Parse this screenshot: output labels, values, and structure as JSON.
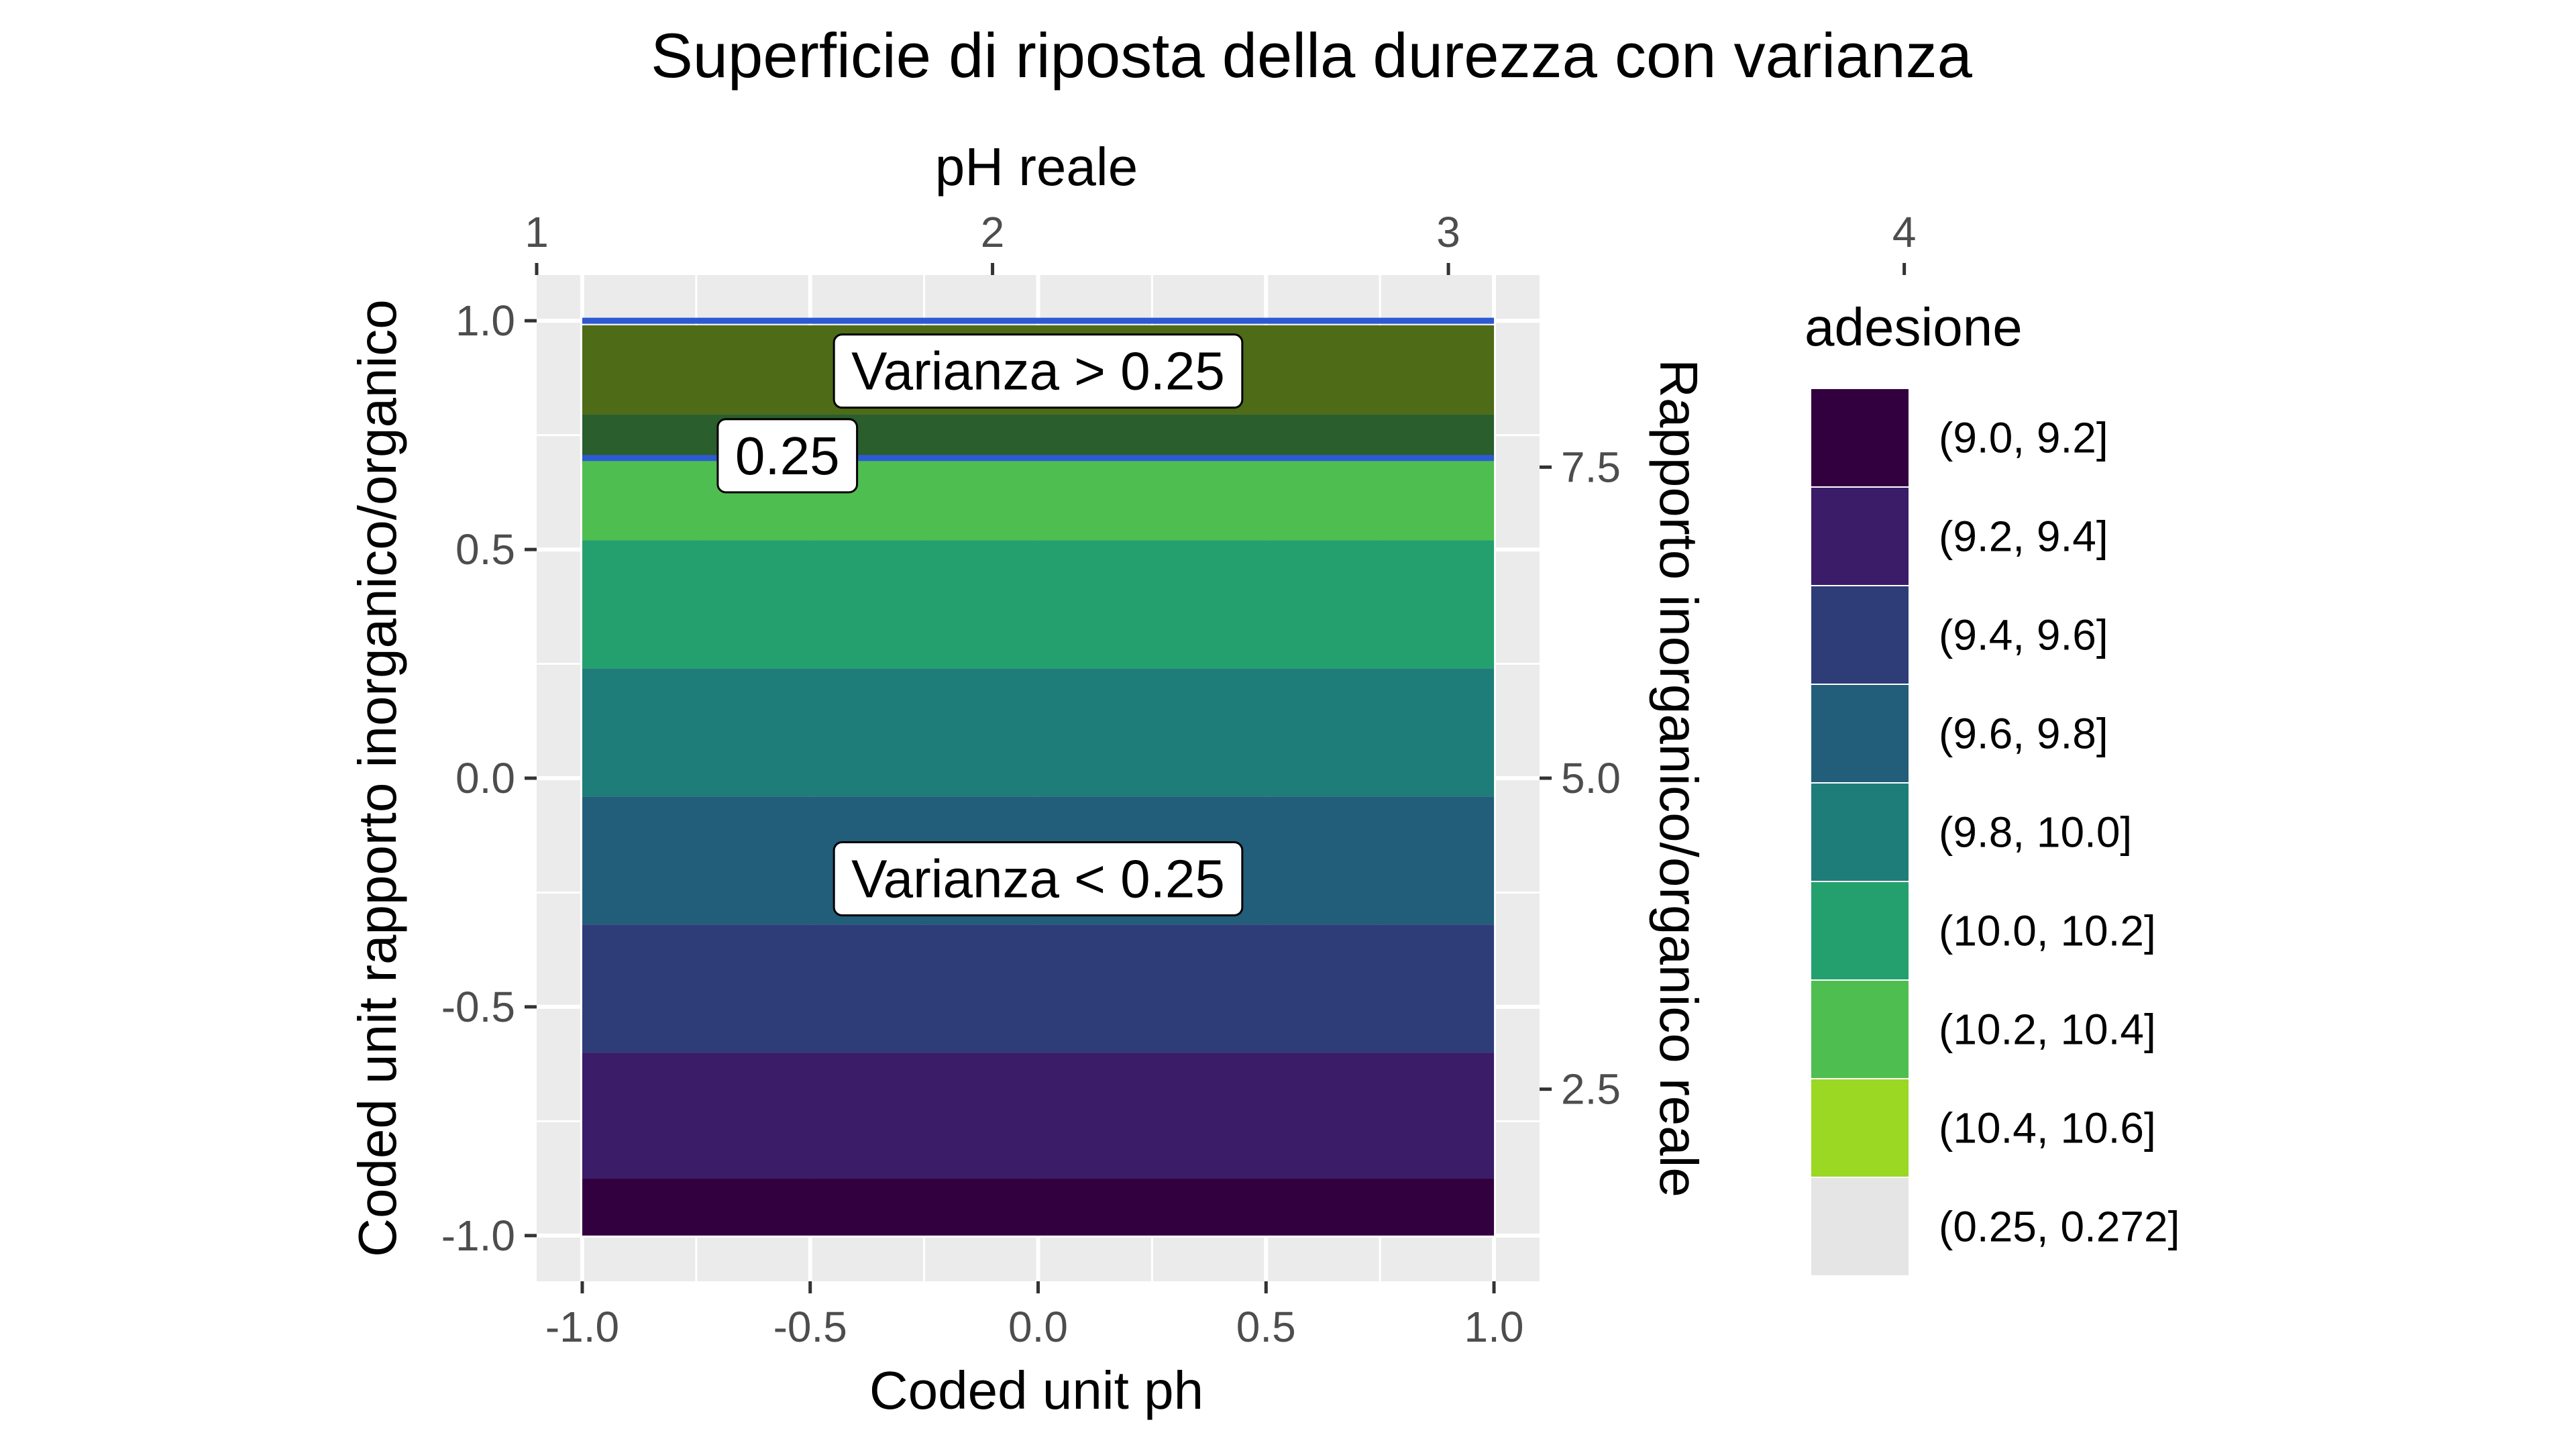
{
  "chart_data": {
    "type": "contour",
    "title": "Superficie di riposta della durezza con varianza",
    "xlabel": "Coded unit ph",
    "ylabel": "Coded unit rapporto inorganico/organico",
    "x2label": "pH reale",
    "y2label": "Rapporto inorganico/organico reale",
    "xlim": [
      -1.1,
      1.1
    ],
    "ylim": [
      -1.1,
      1.1
    ],
    "x_ticks": [
      -1.0,
      -0.5,
      0.0,
      0.5,
      1.0
    ],
    "x_tick_labels": [
      "-1.0",
      "-0.5",
      "0.0",
      "0.5",
      "1.0"
    ],
    "y_ticks": [
      -1.0,
      -0.5,
      0.0,
      0.5,
      1.0
    ],
    "y_tick_labels": [
      "-1.0",
      "-0.5",
      "0.0",
      "0.5",
      "1.0"
    ],
    "x2_ticks": [
      1,
      2,
      3,
      4
    ],
    "x2_tick_labels": [
      "1",
      "2",
      "3",
      "4"
    ],
    "x2_ticks_coded": [
      -1.1,
      -0.1,
      0.9,
      1.9
    ],
    "y2_ticks": [
      2.5,
      5.0,
      7.5
    ],
    "y2_tick_labels": [
      "2.5",
      "5.0",
      "7.5"
    ],
    "y2_ticks_coded": [
      -0.68,
      0.0,
      0.68
    ],
    "grid": true,
    "legend_title": "adesione",
    "legend_position": "right",
    "legend": [
      {
        "label": "(9.0, 9.2]",
        "color": "#33003f"
      },
      {
        "label": "(9.2, 9.4]",
        "color": "#3a1c68"
      },
      {
        "label": "(9.4, 9.6]",
        "color": "#2e3d78"
      },
      {
        "label": "(9.6, 9.8]",
        "color": "#225e7a"
      },
      {
        "label": "(9.8, 10.0]",
        "color": "#1e7d79"
      },
      {
        "label": "(10.0, 10.2]",
        "color": "#24a06e"
      },
      {
        "label": "(10.2, 10.4]",
        "color": "#4fbe50"
      },
      {
        "label": "(10.4, 10.6]",
        "color": "#9ad824"
      },
      {
        "label": "(0.25, 0.272]",
        "color": "#e5e5e5"
      }
    ],
    "bands": [
      {
        "y0": -1.0,
        "y1": -0.875,
        "fill": "#33003f"
      },
      {
        "y0": -0.875,
        "y1": -0.6,
        "fill": "#3a1c68"
      },
      {
        "y0": -0.6,
        "y1": -0.32,
        "fill": "#2e3d78"
      },
      {
        "y0": -0.32,
        "y1": -0.04,
        "fill": "#225e7a"
      },
      {
        "y0": -0.04,
        "y1": 0.24,
        "fill": "#1e7d79"
      },
      {
        "y0": 0.24,
        "y1": 0.52,
        "fill": "#24a06e"
      },
      {
        "y0": 0.52,
        "y1": 0.7,
        "fill": "#4fbe50"
      },
      {
        "y0": 0.7,
        "y1": 0.795,
        "fill": "#2a5e2c"
      },
      {
        "y0": 0.795,
        "y1": 0.99,
        "fill": "#4e6b18"
      }
    ],
    "x_range": [
      -1.0,
      1.0
    ],
    "contour_lines": [
      {
        "y": 0.7,
        "color": "#2d5ad2"
      },
      {
        "y": 1.0,
        "color": "#2d5ad2"
      }
    ],
    "annotations": [
      {
        "text": "Varianza > 0.25",
        "x": 0.0,
        "y": 0.89
      },
      {
        "text": "0.25",
        "x": -0.55,
        "y": 0.705
      },
      {
        "text": "Varianza < 0.25",
        "x": 0.0,
        "y": -0.22
      }
    ]
  }
}
